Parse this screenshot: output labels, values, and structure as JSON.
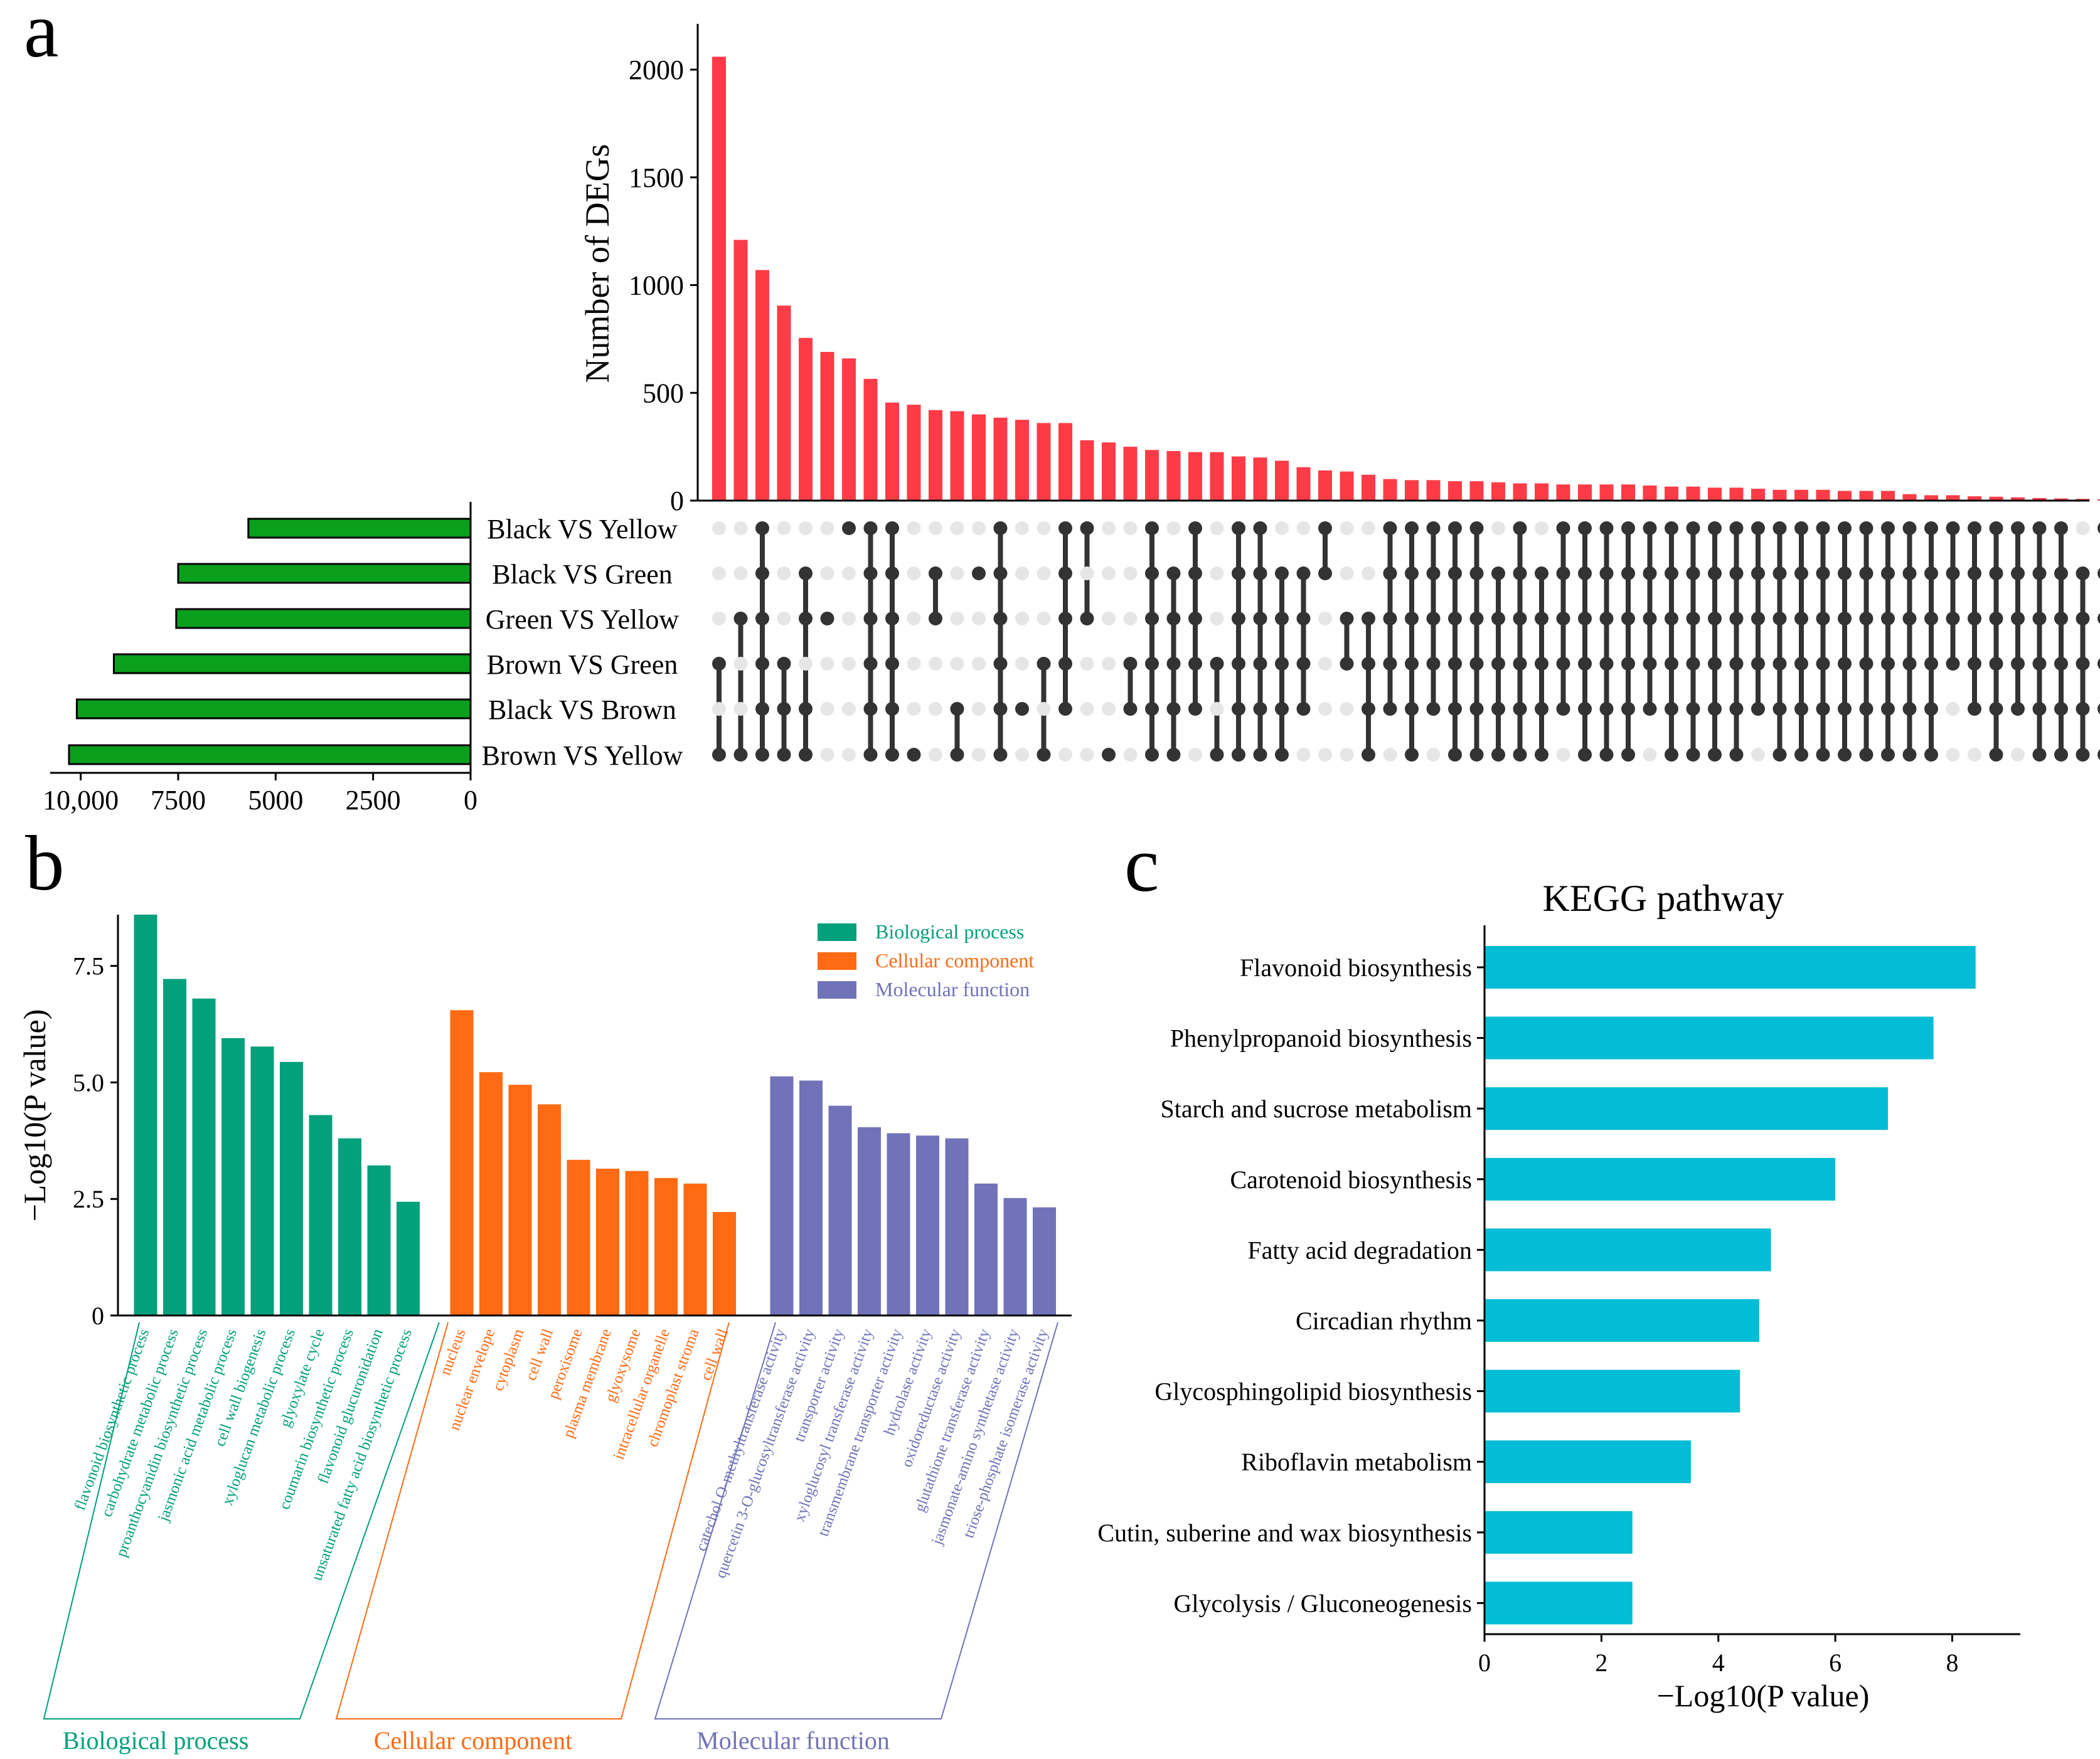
{
  "panels": {
    "a": "a",
    "b": "b",
    "c": "c"
  },
  "colors": {
    "upset_bar": "#ff3b47",
    "set_bar": "#0a9f1c",
    "dot_active": "#333333",
    "dot_inactive": "#e6e6e6",
    "bp": "#02a07b",
    "cc": "#ff6a13",
    "mf": "#7073b8",
    "kegg": "#03bcd6"
  },
  "chart_data": [
    {
      "id": "upset",
      "type": "bar",
      "title": "",
      "ylabel": "Number of DEGs",
      "ylim": [
        0,
        2100
      ],
      "yticks": [
        0,
        500,
        1000,
        1500,
        2000
      ],
      "values": [
        2060,
        1210,
        1070,
        905,
        755,
        690,
        660,
        565,
        455,
        445,
        420,
        415,
        400,
        385,
        375,
        360,
        360,
        280,
        270,
        250,
        235,
        230,
        225,
        225,
        205,
        200,
        185,
        155,
        140,
        135,
        120,
        100,
        95,
        95,
        90,
        90,
        85,
        80,
        80,
        75,
        75,
        75,
        75,
        70,
        65,
        65,
        60,
        60,
        55,
        50,
        50,
        50,
        45,
        45,
        45,
        30,
        25,
        25,
        20,
        18,
        15,
        12,
        10,
        8,
        6
      ],
      "sets": [
        "Black VS Yellow",
        "Black VS Green",
        "Green VS Yellow",
        "Brown VS Green",
        "Black VS Brown",
        "Brown VS Yellow"
      ],
      "set_sizes": [
        5700,
        7500,
        7550,
        9150,
        10100,
        10300
      ],
      "set_axis_ticks": [
        "10,000",
        "7500",
        "5000",
        "2500",
        "0"
      ],
      "set_axis_values": [
        10000,
        7500,
        5000,
        2500,
        0
      ],
      "set_xlim": [
        10900,
        0
      ],
      "matrix": [
        [
          5,
          3
        ],
        [
          5,
          2
        ],
        [
          0,
          1,
          2,
          3,
          4,
          5
        ],
        [
          3,
          4,
          5
        ],
        [
          1,
          2,
          4,
          5
        ],
        [
          2
        ],
        [
          0
        ],
        [
          0,
          1,
          2,
          3,
          4,
          5
        ],
        [
          0,
          1,
          2,
          3,
          4,
          5
        ],
        [
          5
        ],
        [
          1,
          2
        ],
        [
          4,
          5
        ],
        [
          1
        ],
        [
          0,
          1,
          2,
          3,
          4,
          5
        ],
        [
          4
        ],
        [
          3,
          5
        ],
        [
          0,
          1,
          2,
          3,
          4
        ],
        [
          0,
          2
        ],
        [
          5
        ],
        [
          3,
          4
        ],
        [
          0,
          1,
          2,
          3,
          4,
          5
        ],
        [
          1,
          2,
          3,
          4,
          5
        ],
        [
          0,
          1,
          2,
          3,
          4
        ],
        [
          3,
          5
        ],
        [
          0,
          1,
          2,
          3,
          4,
          5
        ],
        [
          0,
          1,
          2,
          3,
          4,
          5
        ],
        [
          1,
          2,
          3,
          4,
          5
        ],
        [
          1,
          2,
          3,
          4
        ],
        [
          0,
          1
        ],
        [
          2,
          3
        ],
        [
          2,
          3,
          4,
          5
        ],
        [
          0,
          1,
          2,
          3,
          4
        ],
        [
          0,
          1,
          2,
          3,
          4,
          5
        ],
        [
          0,
          1,
          2,
          3,
          4
        ],
        [
          0,
          1,
          2,
          3,
          4,
          5
        ],
        [
          0,
          1,
          2,
          3,
          4,
          5
        ],
        [
          1,
          2,
          3,
          4,
          5
        ],
        [
          0,
          1,
          2,
          3,
          4,
          5
        ],
        [
          1,
          2,
          3,
          4,
          5
        ],
        [
          0,
          1,
          2,
          3,
          4
        ],
        [
          0,
          1,
          2,
          3,
          4,
          5
        ],
        [
          0,
          1,
          2,
          3,
          4,
          5
        ],
        [
          0,
          1,
          2,
          3,
          4,
          5
        ],
        [
          0,
          1,
          2,
          3,
          4
        ],
        [
          0,
          1,
          2,
          3,
          4,
          5
        ],
        [
          0,
          1,
          2,
          3,
          4,
          5
        ],
        [
          0,
          1,
          2,
          3,
          4,
          5
        ],
        [
          0,
          1,
          2,
          3,
          4,
          5
        ],
        [
          0,
          1,
          2,
          3,
          4
        ],
        [
          0,
          1,
          2,
          3,
          4,
          5
        ],
        [
          0,
          1,
          2,
          3,
          4,
          5
        ],
        [
          0,
          1,
          2,
          3,
          4,
          5
        ],
        [
          0,
          1,
          2,
          3,
          4,
          5
        ],
        [
          0,
          1,
          2,
          3,
          4,
          5
        ],
        [
          0,
          1,
          2,
          3,
          4,
          5
        ],
        [
          0,
          1,
          2,
          3,
          4,
          5
        ],
        [
          0,
          1,
          2,
          3,
          4,
          5
        ],
        [
          0,
          1,
          2,
          3
        ],
        [
          0,
          1,
          2,
          3,
          4
        ],
        [
          0,
          1,
          2,
          3,
          4,
          5
        ],
        [
          0,
          1,
          2,
          3,
          4
        ],
        [
          0,
          1,
          2,
          3,
          4,
          5
        ],
        [
          0,
          1,
          2,
          3,
          4,
          5
        ],
        [
          1,
          2,
          3,
          4,
          5
        ],
        [
          0,
          1,
          2,
          3,
          4,
          5
        ]
      ]
    },
    {
      "id": "go",
      "type": "bar",
      "title": "",
      "ylabel": "−Log10(P value)",
      "ylim": [
        0,
        8.6
      ],
      "yticks": [
        "0",
        "2.5",
        "5.0",
        "7.5"
      ],
      "ytick_values": [
        0,
        2.5,
        5.0,
        7.5
      ],
      "legend": [
        "Biological process",
        "Cellular component",
        "Molecular function"
      ],
      "legend_position": "top-right",
      "groups": [
        {
          "name": "Biological process",
          "categories": [
            "flavonoid biosynthetic process",
            "carbohydrate metabolic process",
            "proanthocyanidin biosynthetic process",
            "jasmonic acid metabolic process",
            "cell wall biogenesis",
            "xyloglucan metabolic process",
            "glyoxylate cycle",
            "coumarin biosynthetic process",
            "flavonoid glucuronidation",
            "unsaturated fatty acid biosynthetic process"
          ],
          "values": [
            8.6,
            7.22,
            6.8,
            5.95,
            5.77,
            5.44,
            4.3,
            3.8,
            3.22,
            2.44
          ]
        },
        {
          "name": "Cellular component",
          "categories": [
            "nucleus",
            "nuclear envelope",
            "cytoplasm",
            "cell wall",
            "peroxisome",
            "plasma membrane",
            "glyoxysome",
            "intracellular organelle",
            "chromoplast stroma",
            "cell wall"
          ],
          "values": [
            6.55,
            5.22,
            4.95,
            4.53,
            3.34,
            3.15,
            3.1,
            2.95,
            2.83,
            2.22
          ]
        },
        {
          "name": "Molecular function",
          "categories": [
            "catechol O-methyltransferase activity",
            "quercetin 3-O-glucosyltransferase activity",
            "transporter activity",
            "xyloglucosyl transferase activity",
            "transmembrane transporter activity",
            "hydrolase activity",
            "oxidoreductase activity",
            "glutathione transferase activity",
            "jasmonate-amino synthetase activity",
            "triose-phosphate isomerase activity"
          ],
          "values": [
            5.13,
            5.04,
            4.5,
            4.04,
            3.91,
            3.86,
            3.8,
            2.83,
            2.52,
            2.32
          ]
        }
      ]
    },
    {
      "id": "kegg",
      "type": "bar",
      "orientation": "horizontal",
      "title": "KEGG pathway",
      "xlabel": "−Log10(P value)",
      "xlim": [
        0,
        8.8
      ],
      "xticks": [
        0,
        2,
        4,
        6,
        8
      ],
      "categories": [
        "Flavonoid biosynthesis",
        "Phenylpropanoid biosynthesis",
        "Starch and sucrose metabolism",
        "Carotenoid biosynthesis",
        "Fatty acid degradation",
        "Circadian rhythm",
        "Glycosphingolipid biosynthesis",
        "Riboflavin metabolism",
        "Cutin, suberine and wax biosynthesis",
        "Glycolysis / Gluconeogenesis"
      ],
      "values": [
        8.4,
        7.68,
        6.9,
        6.0,
        4.9,
        4.7,
        4.37,
        3.53,
        2.53,
        2.53
      ]
    }
  ]
}
